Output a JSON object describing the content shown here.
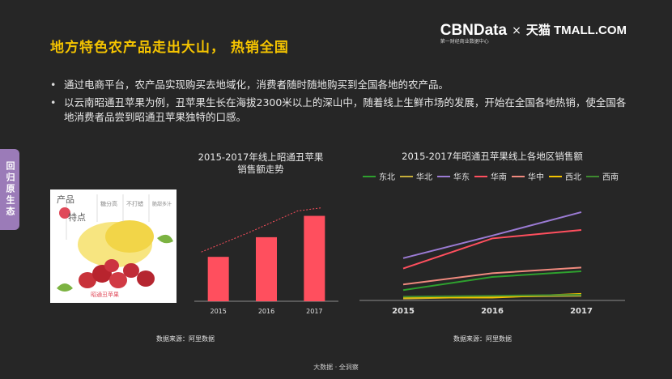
{
  "header": {
    "title": "地方特色农产品走出大山， 热销全国",
    "brand_cbn": "CBNData",
    "brand_cbn_sub": "第一财经商业数据中心",
    "brand_x": "×",
    "brand_tmall_cn": "天猫",
    "brand_tmall_en": "TMALL.COM"
  },
  "bullets": [
    "通过电商平台，农产品实现购买去地域化，消费者随时随地购买到全国各地的农产品。",
    "以云南昭通丑苹果为例，丑苹果生长在海拔2300米以上的深山中，随着线上生鲜市场的发展，开始在全国各地热销，使全国各地消费者品尝到昭通丑苹果独特的口感。"
  ],
  "side_tab": "回归原生态",
  "photo": {
    "label_product": "产品",
    "label_feature": "特点",
    "label_brand": "昭通丑苹果",
    "captions": [
      "糖分高",
      "不打蜡",
      "脆甜多汁"
    ]
  },
  "left_chart_title": [
    "2015-2017年线上昭通丑苹果",
    "销售额走势"
  ],
  "right_chart_title": "2015-2017年昭通丑苹果线上各地区销售额",
  "left_source": "数据来源：阿里数据",
  "right_source": "数据来源：阿里数据",
  "footer": "大数据 · 全洞察",
  "chart_data": [
    {
      "type": "bar",
      "title": "2015-2017年线上昭通丑苹果销售额走势",
      "categories": [
        "2015",
        "2016",
        "2017"
      ],
      "values": [
        52,
        75,
        100
      ],
      "ylim": [
        0,
        110
      ],
      "trendline": true,
      "color": "#ff4f5e",
      "xlabel": "",
      "ylabel": ""
    },
    {
      "type": "line",
      "title": "2015-2017年昭通丑苹果线上各地区销售额",
      "categories": [
        "2015",
        "2016",
        "2017"
      ],
      "ylim": [
        0,
        100
      ],
      "series": [
        {
          "name": "东北",
          "color": "#2ea02e",
          "values": [
            11,
            25,
            31
          ]
        },
        {
          "name": "华北",
          "color": "#c6ad3a",
          "values": [
            2,
            4,
            5
          ]
        },
        {
          "name": "华东",
          "color": "#9b7bd4",
          "values": [
            45,
            69,
            94
          ]
        },
        {
          "name": "华南",
          "color": "#ff4f5e",
          "values": [
            34,
            66,
            75
          ]
        },
        {
          "name": "华中",
          "color": "#f08a7e",
          "values": [
            17,
            29,
            35
          ]
        },
        {
          "name": "西北",
          "color": "#f3c300",
          "values": [
            3,
            3,
            7
          ]
        },
        {
          "name": "西南",
          "color": "#3e8a30",
          "values": [
            4,
            5,
            6
          ]
        }
      ]
    }
  ]
}
